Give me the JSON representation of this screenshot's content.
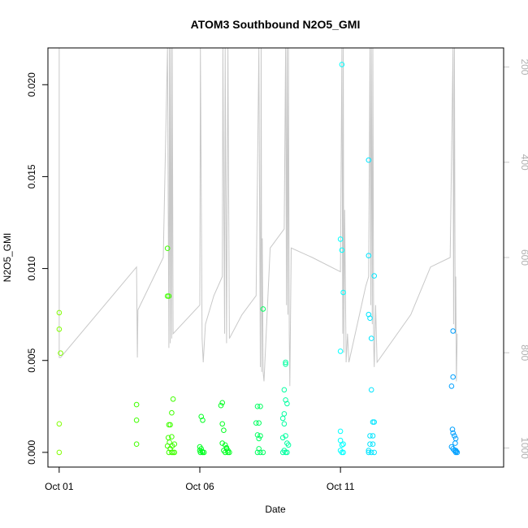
{
  "chart_data": {
    "type": "scatter",
    "title": "ATOM3 Southbound N2O5_GMI",
    "xlabel": "Date",
    "ylabel": "N2O5_GMI",
    "x_unit": "day of October 2017 (decimal)",
    "xlim": [
      0.6,
      16.8
    ],
    "ylim": [
      -0.0008,
      0.022
    ],
    "x_ticks": [
      {
        "x": 1.0,
        "label": "Oct 01"
      },
      {
        "x": 6.0,
        "label": "Oct 06"
      },
      {
        "x": 11.0,
        "label": "Oct 11"
      }
    ],
    "y_ticks": [
      {
        "y": 0.0,
        "label": "0.000"
      },
      {
        "y": 0.005,
        "label": "0.005"
      },
      {
        "y": 0.01,
        "label": "0.010"
      },
      {
        "y": 0.015,
        "label": "0.015"
      },
      {
        "y": 0.02,
        "label": "0.020"
      }
    ],
    "right_axis": {
      "quantity": "pressure",
      "reversed": true,
      "ylim": [
        1040,
        160
      ],
      "ticks": [
        {
          "y": 200,
          "label": "200"
        },
        {
          "y": 400,
          "label": "400"
        },
        {
          "y": 600,
          "label": "600"
        },
        {
          "y": 800,
          "label": "800"
        },
        {
          "y": 1000,
          "label": "1000"
        }
      ],
      "color": "#c8c8c8"
    },
    "profile_line": {
      "color": "#c8c8c8",
      "points": [
        [
          1.0,
          60
        ],
        [
          1.0,
          810
        ],
        [
          1.05,
          810
        ],
        [
          3.75,
          620
        ],
        [
          3.78,
          810
        ],
        [
          3.8,
          710
        ],
        [
          4.7,
          600
        ],
        [
          4.85,
          160
        ],
        [
          4.9,
          790
        ],
        [
          4.92,
          160
        ],
        [
          4.95,
          780
        ],
        [
          4.97,
          160
        ],
        [
          5.0,
          770
        ],
        [
          5.02,
          160
        ],
        [
          5.05,
          760
        ],
        [
          6.0,
          700
        ],
        [
          6.02,
          160
        ],
        [
          6.08,
          770
        ],
        [
          6.12,
          820
        ],
        [
          6.2,
          740
        ],
        [
          6.5,
          680
        ],
        [
          6.8,
          640
        ],
        [
          6.82,
          160
        ],
        [
          6.88,
          760
        ],
        [
          6.9,
          160
        ],
        [
          6.95,
          780
        ],
        [
          7.0,
          160
        ],
        [
          7.05,
          770
        ],
        [
          7.5,
          720
        ],
        [
          8.0,
          680
        ],
        [
          8.1,
          160
        ],
        [
          8.15,
          830
        ],
        [
          8.18,
          160
        ],
        [
          8.2,
          840
        ],
        [
          8.22,
          560
        ],
        [
          8.25,
          840
        ],
        [
          8.28,
          860
        ],
        [
          8.5,
          580
        ],
        [
          9.0,
          540
        ],
        [
          9.05,
          160
        ],
        [
          9.08,
          700
        ],
        [
          9.1,
          160
        ],
        [
          9.13,
          720
        ],
        [
          9.15,
          160
        ],
        [
          9.18,
          760
        ],
        [
          9.2,
          870
        ],
        [
          9.25,
          580
        ],
        [
          10.0,
          600
        ],
        [
          11.0,
          630
        ],
        [
          11.05,
          160
        ],
        [
          11.08,
          760
        ],
        [
          11.1,
          160
        ],
        [
          11.12,
          800
        ],
        [
          11.15,
          500
        ],
        [
          11.2,
          820
        ],
        [
          11.25,
          760
        ],
        [
          11.3,
          820
        ],
        [
          11.9,
          660
        ],
        [
          12.0,
          640
        ],
        [
          12.05,
          160
        ],
        [
          12.08,
          700
        ],
        [
          12.1,
          160
        ],
        [
          12.13,
          740
        ],
        [
          12.15,
          160
        ],
        [
          12.18,
          780
        ],
        [
          12.2,
          830
        ],
        [
          12.25,
          700
        ],
        [
          12.3,
          820
        ],
        [
          13.5,
          720
        ],
        [
          14.2,
          620
        ],
        [
          14.9,
          600
        ],
        [
          15.0,
          160
        ],
        [
          15.02,
          740
        ],
        [
          15.05,
          160
        ],
        [
          15.08,
          760
        ],
        [
          15.1,
          640
        ],
        [
          15.12,
          860
        ],
        [
          15.15,
          760
        ]
      ]
    },
    "series": [
      {
        "color": "#80ff00",
        "points": [
          [
            1.0,
            0.0076
          ],
          [
            1.0,
            0.0067
          ],
          [
            1.05,
            0.0054
          ],
          [
            1.0,
            0.00155
          ],
          [
            1.0,
            0.0
          ]
        ]
      },
      {
        "color": "#40ff00",
        "points": [
          [
            3.75,
            0.0026
          ],
          [
            3.75,
            0.00175
          ],
          [
            3.75,
            0.00045
          ],
          [
            4.85,
            0.0111
          ],
          [
            4.85,
            0.0085
          ],
          [
            4.9,
            0.0085
          ],
          [
            4.9,
            0.0015
          ],
          [
            4.95,
            0.0015
          ],
          [
            4.88,
            0.0008
          ],
          [
            4.92,
            0.00055
          ],
          [
            4.85,
            0.00035
          ],
          [
            4.95,
            0.0002
          ],
          [
            4.9,
            0.0
          ],
          [
            5.0,
            0.0
          ],
          [
            5.05,
            0.0
          ],
          [
            5.05,
            0.0029
          ],
          [
            5.0,
            0.00215
          ],
          [
            5.0,
            0.00085
          ],
          [
            5.1,
            0.00045
          ],
          [
            5.1,
            0.0
          ],
          [
            4.95,
            0.0002
          ],
          [
            5.02,
            0.00035
          ]
        ]
      },
      {
        "color": "#00ff20",
        "points": [
          [
            6.05,
            0.00195
          ],
          [
            6.1,
            0.00175
          ],
          [
            6.0,
            0.0003
          ],
          [
            6.05,
            0.0002
          ],
          [
            6.0,
            0.0001
          ],
          [
            6.08,
            5e-05
          ],
          [
            6.1,
            0.0
          ],
          [
            6.15,
            0.0
          ],
          [
            6.02,
            0.0
          ],
          [
            6.8,
            0.0027
          ],
          [
            6.75,
            0.00255
          ],
          [
            6.8,
            0.00155
          ],
          [
            6.85,
            0.0012
          ],
          [
            6.8,
            0.0005
          ],
          [
            6.9,
            0.0004
          ],
          [
            6.95,
            0.0002
          ],
          [
            6.85,
            0.0001
          ],
          [
            7.0,
            0.0001
          ],
          [
            7.0,
            0.0
          ],
          [
            6.9,
            0.0
          ],
          [
            7.05,
            0.0
          ],
          [
            6.95,
            0.00025
          ]
        ]
      },
      {
        "color": "#00ff60",
        "points": [
          [
            8.05,
            0.0025
          ],
          [
            8.15,
            0.0025
          ],
          [
            8.0,
            0.0016
          ],
          [
            8.1,
            0.0016
          ],
          [
            8.05,
            0.00095
          ],
          [
            8.1,
            0.00075
          ],
          [
            8.15,
            0.0009
          ],
          [
            8.1,
            0.0002
          ],
          [
            8.05,
            0.0
          ],
          [
            8.15,
            0.0
          ],
          [
            8.25,
            0.0
          ],
          [
            8.25,
            0.0078
          ]
        ]
      },
      {
        "color": "#00ffa0",
        "points": [
          [
            9.05,
            0.0049
          ],
          [
            9.05,
            0.0048
          ],
          [
            9.0,
            0.0034
          ],
          [
            9.05,
            0.00285
          ],
          [
            9.1,
            0.00265
          ],
          [
            9.0,
            0.0021
          ],
          [
            8.95,
            0.00185
          ],
          [
            9.0,
            0.00155
          ],
          [
            9.05,
            0.0009
          ],
          [
            8.95,
            0.0008
          ],
          [
            9.1,
            0.0005
          ],
          [
            9.0,
            0.0001
          ],
          [
            9.05,
            0.0
          ],
          [
            9.1,
            0.0
          ],
          [
            8.95,
            0.0
          ],
          [
            9.15,
            0.0004
          ]
        ]
      },
      {
        "color": "#00ffff",
        "points": [
          [
            11.05,
            0.0211
          ],
          [
            11.0,
            0.0116
          ],
          [
            11.05,
            0.011
          ],
          [
            11.1,
            0.0087
          ],
          [
            11.0,
            0.0055
          ],
          [
            11.0,
            0.00115
          ],
          [
            11.0,
            0.00065
          ],
          [
            11.05,
            0.0004
          ],
          [
            11.1,
            0.00045
          ],
          [
            11.0,
            0.0001
          ],
          [
            11.05,
            0.0
          ],
          [
            11.1,
            0.0
          ]
        ]
      },
      {
        "color": "#00e5ff",
        "points": [
          [
            12.0,
            0.0159
          ],
          [
            12.0,
            0.0107
          ],
          [
            12.2,
            0.0096
          ],
          [
            12.0,
            0.0075
          ],
          [
            12.05,
            0.0073
          ],
          [
            12.1,
            0.0062
          ],
          [
            12.1,
            0.0034
          ],
          [
            12.15,
            0.00165
          ],
          [
            12.2,
            0.00165
          ],
          [
            12.05,
            0.0009
          ],
          [
            12.15,
            0.0009
          ],
          [
            12.05,
            0.00045
          ],
          [
            12.15,
            0.00045
          ],
          [
            12.0,
            0.0001
          ],
          [
            12.1,
            0.0
          ],
          [
            12.2,
            0.0
          ],
          [
            12.0,
            0.0
          ]
        ]
      },
      {
        "color": "#00a0ff",
        "points": [
          [
            15.0,
            0.0066
          ],
          [
            15.0,
            0.0041
          ],
          [
            14.95,
            0.0036
          ],
          [
            14.98,
            0.00125
          ],
          [
            15.0,
            0.00105
          ],
          [
            15.05,
            0.0009
          ],
          [
            15.1,
            0.00075
          ],
          [
            15.08,
            0.0005
          ],
          [
            14.95,
            0.0003
          ],
          [
            15.0,
            0.0002
          ],
          [
            15.05,
            0.0001
          ],
          [
            15.1,
            0.0001
          ],
          [
            15.12,
            5e-05
          ],
          [
            15.1,
            0.0
          ],
          [
            15.15,
            0.0
          ]
        ]
      }
    ],
    "grid": false,
    "legend": "none"
  }
}
